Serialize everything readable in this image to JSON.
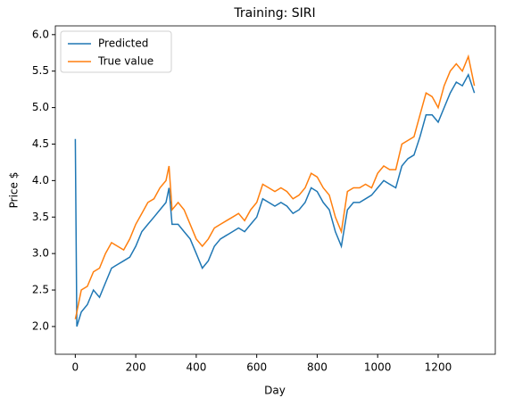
{
  "chart_data": {
    "type": "line",
    "title": "Training: SIRI",
    "x_label": "Day",
    "y_label": "Price $",
    "x": [
      0,
      5,
      20,
      40,
      60,
      80,
      100,
      120,
      140,
      160,
      180,
      200,
      220,
      240,
      260,
      280,
      300,
      310,
      320,
      340,
      360,
      380,
      400,
      420,
      440,
      460,
      480,
      500,
      520,
      540,
      560,
      580,
      600,
      620,
      640,
      660,
      680,
      700,
      720,
      740,
      760,
      780,
      800,
      820,
      840,
      860,
      880,
      900,
      920,
      940,
      960,
      980,
      1000,
      1020,
      1040,
      1060,
      1080,
      1100,
      1120,
      1140,
      1160,
      1180,
      1200,
      1220,
      1240,
      1260,
      1280,
      1300,
      1320
    ],
    "series": [
      {
        "name": "Predicted",
        "color": "#1f77b4",
        "values": [
          4.57,
          2.0,
          2.2,
          2.3,
          2.5,
          2.4,
          2.6,
          2.8,
          2.85,
          2.9,
          2.95,
          3.1,
          3.3,
          3.4,
          3.5,
          3.6,
          3.7,
          3.9,
          3.4,
          3.4,
          3.3,
          3.2,
          3.0,
          2.8,
          2.9,
          3.1,
          3.2,
          3.25,
          3.3,
          3.35,
          3.3,
          3.4,
          3.5,
          3.75,
          3.7,
          3.65,
          3.7,
          3.65,
          3.55,
          3.6,
          3.7,
          3.9,
          3.85,
          3.7,
          3.6,
          3.3,
          3.1,
          3.6,
          3.7,
          3.7,
          3.75,
          3.8,
          3.9,
          4.0,
          3.95,
          3.9,
          4.2,
          4.3,
          4.35,
          4.6,
          4.9,
          4.9,
          4.8,
          5.0,
          5.2,
          5.35,
          5.3,
          5.45,
          5.2
        ]
      },
      {
        "name": "True value",
        "color": "#ff7f0e",
        "values": [
          2.1,
          2.2,
          2.5,
          2.55,
          2.75,
          2.8,
          3.0,
          3.15,
          3.1,
          3.05,
          3.2,
          3.4,
          3.55,
          3.7,
          3.75,
          3.9,
          4.0,
          4.2,
          3.6,
          3.7,
          3.6,
          3.4,
          3.2,
          3.1,
          3.2,
          3.35,
          3.4,
          3.45,
          3.5,
          3.55,
          3.45,
          3.6,
          3.7,
          3.95,
          3.9,
          3.85,
          3.9,
          3.85,
          3.75,
          3.8,
          3.9,
          4.1,
          4.05,
          3.9,
          3.8,
          3.5,
          3.3,
          3.85,
          3.9,
          3.9,
          3.95,
          3.9,
          4.1,
          4.2,
          4.15,
          4.15,
          4.5,
          4.55,
          4.6,
          4.9,
          5.2,
          5.15,
          5.0,
          5.3,
          5.5,
          5.6,
          5.5,
          5.7,
          5.3
        ]
      }
    ],
    "xlim": [
      -66,
      1389
    ],
    "ylim": [
      1.62,
      6.12
    ],
    "xticks": [
      0,
      200,
      400,
      600,
      800,
      1000,
      1200
    ],
    "yticks": [
      {
        "value": 2,
        "label": "2.0"
      },
      2.5,
      {
        "value": 3,
        "label": "3.0"
      },
      3.5,
      {
        "value": 4,
        "label": "4.0"
      },
      4.5,
      {
        "value": 5,
        "label": "5.0"
      },
      5.5,
      {
        "value": 6,
        "label": "6.0"
      }
    ],
    "legend": "upper left",
    "grid": false
  }
}
